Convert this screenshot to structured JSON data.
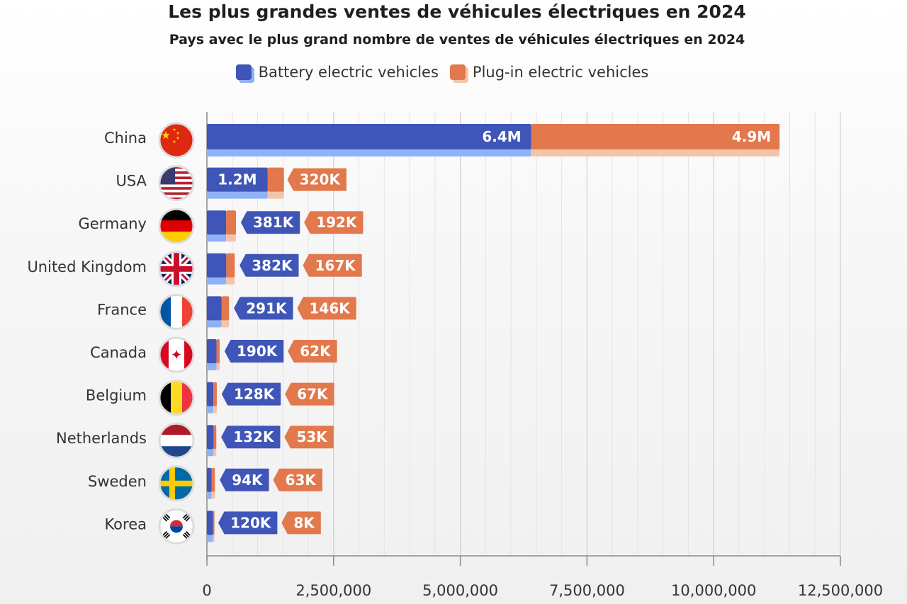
{
  "chart_data": {
    "type": "bar",
    "orientation": "horizontal",
    "stacked": true,
    "title": "Les plus grandes ventes de véhicules électriques en 2024",
    "subtitle": "Pays avec le plus grand nombre de ventes de véhicules électriques en 2024",
    "categories": [
      "China",
      "USA",
      "Germany",
      "United Kingdom",
      "France",
      "Canada",
      "Belgium",
      "Netherlands",
      "Sweden",
      "Korea"
    ],
    "series": [
      {
        "name": "Battery electric vehicles",
        "color": "#3f55b8",
        "values": [
          6400000,
          1200000,
          381000,
          382000,
          291000,
          190000,
          128000,
          132000,
          94000,
          120000
        ],
        "labels": [
          "6.4M",
          "1.2M",
          "381K",
          "382K",
          "291K",
          "190K",
          "128K",
          "132K",
          "94K",
          "120K"
        ]
      },
      {
        "name": "Plug-in electric vehicles",
        "color": "#e2784c",
        "values": [
          4900000,
          320000,
          192000,
          167000,
          146000,
          62000,
          67000,
          53000,
          63000,
          8000
        ],
        "labels": [
          "4.9M",
          "320K",
          "192K",
          "167K",
          "146K",
          "62K",
          "67K",
          "53K",
          "63K",
          "8K"
        ]
      }
    ],
    "xlim": [
      0,
      12500000
    ],
    "x_ticks": [
      0,
      2500000,
      5000000,
      7500000,
      10000000,
      12500000
    ],
    "x_tick_labels": [
      "0",
      "2,500,000",
      "5,000,000",
      "7,500,000",
      "10,000,000",
      "12,500,000"
    ],
    "grid": true,
    "legend_position": "top-center",
    "flag_icons": [
      "china-flag-icon",
      "usa-flag-icon",
      "germany-flag-icon",
      "uk-flag-icon",
      "france-flag-icon",
      "canada-flag-icon",
      "belgium-flag-icon",
      "netherlands-flag-icon",
      "sweden-flag-icon",
      "korea-flag-icon"
    ]
  }
}
